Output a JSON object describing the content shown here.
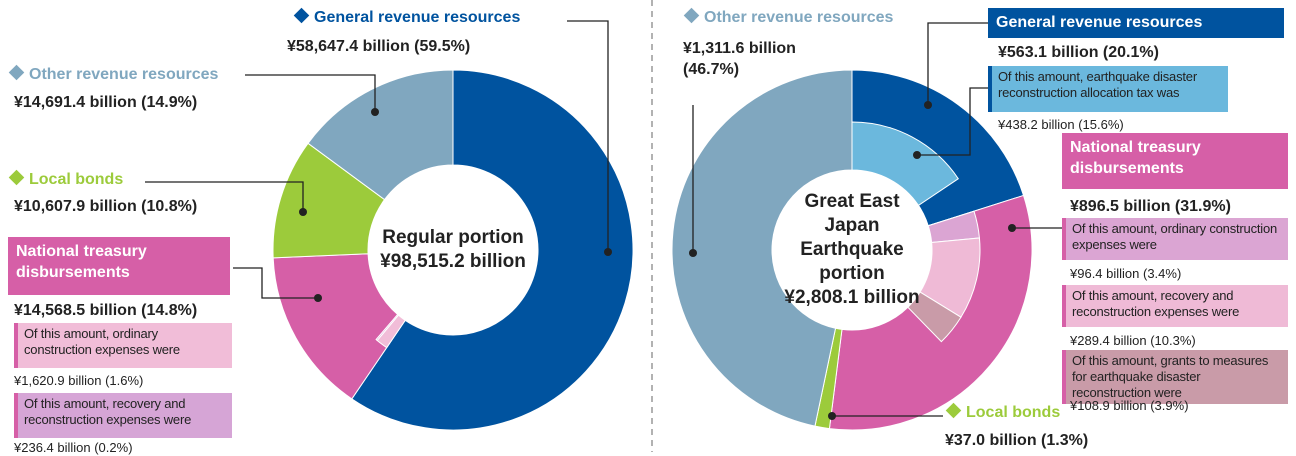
{
  "chart_data": [
    {
      "type": "pie",
      "center": [
        "Regular portion",
        "¥98,515.2 billion"
      ],
      "categories": [
        "General revenue resources",
        "National treasury disbursements",
        "Local bonds",
        "Other revenue resources"
      ],
      "values": [
        59.5,
        14.8,
        10.8,
        14.9
      ],
      "value_labels": [
        "¥58,647.4 billion (59.5%)",
        "¥14,568.5 billion (14.8%)",
        "¥10,607.9 billion (10.8%)",
        "¥14,691.4 billion (14.9%)"
      ],
      "colors": [
        "#00539f",
        "#d65fa7",
        "#9ccb3b",
        "#80a7bf"
      ],
      "details": [
        null,
        [
          {
            "text": "Of this amount, ordinary construction expenses were",
            "value": 1.6,
            "value_label": "¥1,620.9 billion (1.6%)",
            "color": "#f1bdd8"
          },
          {
            "text": "Of this amount, recovery and reconstruction expenses were",
            "value": 0.2,
            "value_label": "¥236.4 billion (0.2%)",
            "color": "#d6a5d6"
          }
        ],
        null,
        null
      ]
    },
    {
      "type": "pie",
      "center": [
        "Great East Japan Earthquake portion",
        "¥2,808.1 billion"
      ],
      "categories": [
        "General revenue resources",
        "National treasury disbursements",
        "Local bonds",
        "Other revenue resources"
      ],
      "values": [
        20.1,
        31.9,
        1.3,
        46.7
      ],
      "value_labels": [
        "¥563.1 billion (20.1%)",
        "¥896.5 billion (31.9%)",
        "¥37.0 billion (1.3%)",
        "¥1,311.6 billion (46.7%)"
      ],
      "colors": [
        "#00539f",
        "#d65fa7",
        "#9ccb3b",
        "#80a7bf"
      ],
      "details": [
        [
          {
            "text": "Of this amount, earthquake disaster reconstruction allocation tax was",
            "value": 15.6,
            "value_label": "¥438.2 billion (15.6%)",
            "color": "#6bb8dd"
          }
        ],
        [
          {
            "text": "Of this amount, ordinary construction expenses were",
            "value": 3.4,
            "value_label": "¥96.4 billion (3.4%)",
            "color": "#dba5d3"
          },
          {
            "text": "Of this amount, recovery and reconstruction expenses were",
            "value": 10.3,
            "value_label": "¥289.4 billion (10.3%)",
            "color": "#efbad6"
          },
          {
            "text": "Of this amount, grants to measures for earthquake disaster reconstruction were",
            "value": 3.9,
            "value_label": "¥108.9 billion (3.9%)",
            "color": "#c99ba8"
          }
        ],
        null,
        null
      ]
    }
  ]
}
